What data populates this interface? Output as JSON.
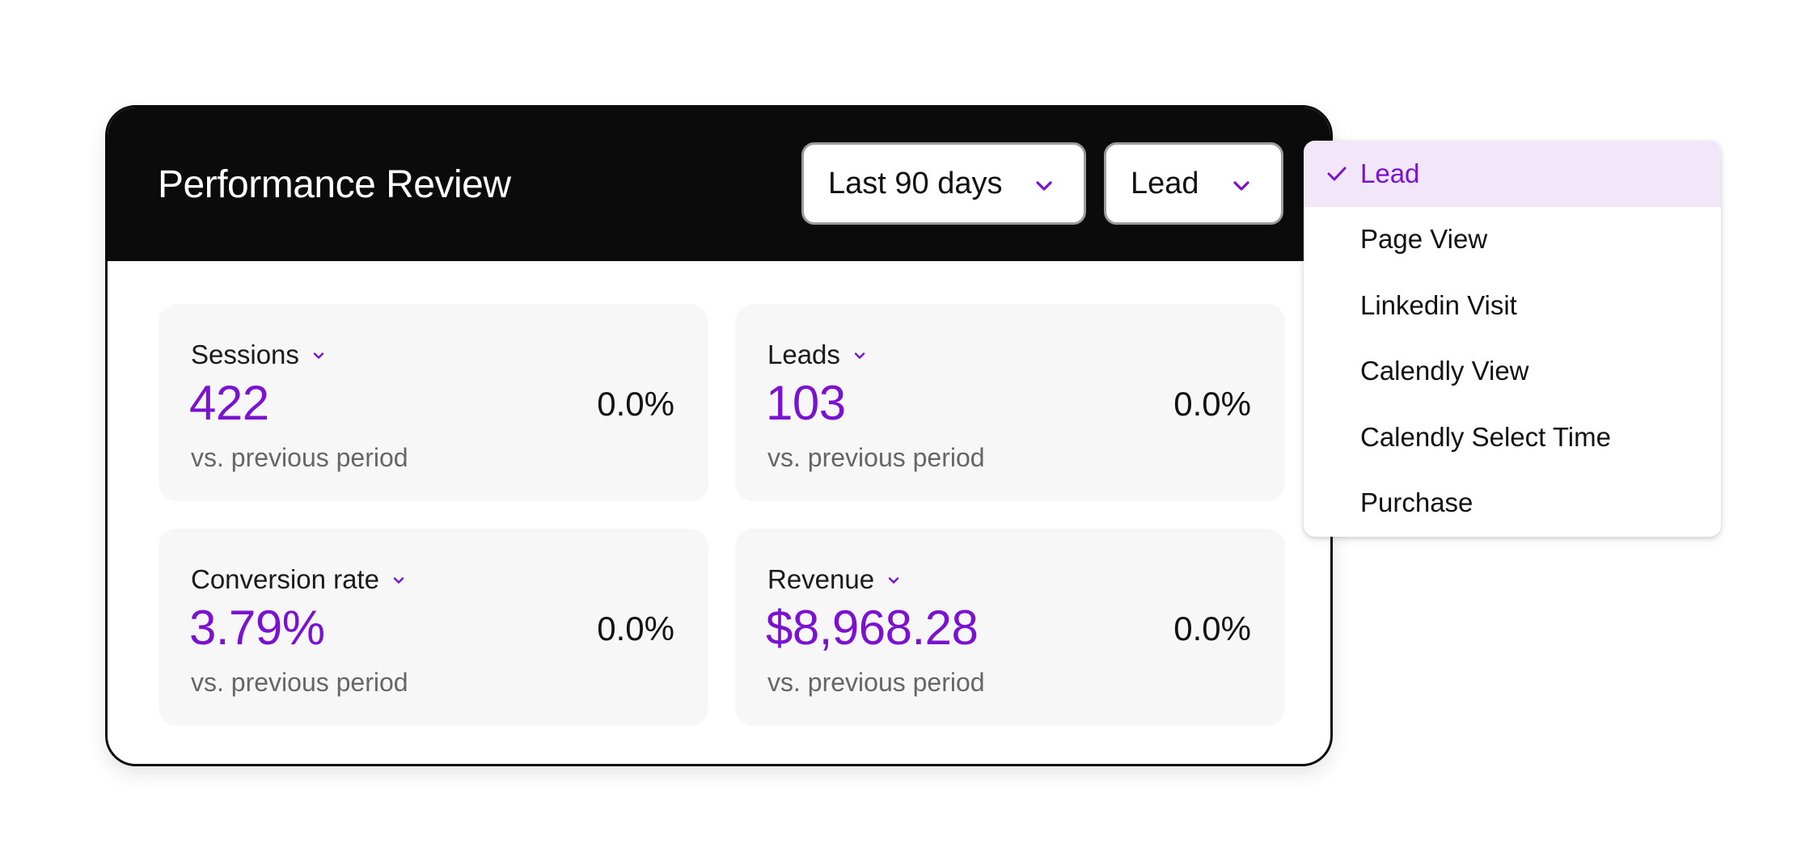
{
  "card": {
    "title": "Performance Review",
    "filters": {
      "range": {
        "value": "Last 90 days",
        "icon": "chevron-down-icon"
      },
      "event": {
        "value": "Lead",
        "icon": "chevron-down-icon"
      }
    }
  },
  "metrics": [
    {
      "label": "Sessions",
      "value": "422",
      "change": "0.0%",
      "comparison": "vs. previous period"
    },
    {
      "label": "Leads",
      "value": "103",
      "change": "0.0%",
      "comparison": "vs. previous period"
    },
    {
      "label": "Conversion rate",
      "value": "3.79%",
      "change": "0.0%",
      "comparison": "vs. previous period"
    },
    {
      "label": "Revenue",
      "value": "$8,968.28",
      "change": "0.0%",
      "comparison": "vs. previous period"
    }
  ],
  "dropdown": {
    "selected": "Lead",
    "selected_icon": "check-icon",
    "options": [
      "Lead",
      "Page View",
      "Linkedin Visit",
      "Calendly View",
      "Calendly Select Time",
      "Purchase"
    ]
  },
  "colors": {
    "accent": "#7a12cf",
    "header_bg": "#0b0b0b",
    "tile_bg": "#f7f7f7",
    "selected_bg": "#f2e6f9"
  }
}
